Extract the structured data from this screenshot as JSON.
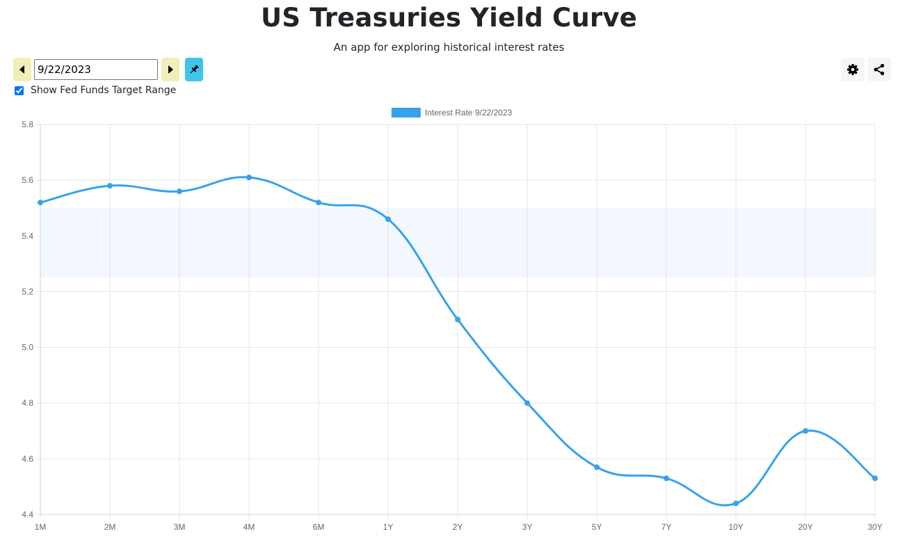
{
  "header": {
    "title": "US Treasuries Yield Curve",
    "subtitle": "An app for exploring historical interest rates"
  },
  "controls": {
    "prev_icon": "caret-left-icon",
    "next_icon": "caret-right-icon",
    "date_value": "9/22/2023",
    "pin_icon": "pin-icon",
    "settings_icon": "gear-icon",
    "share_icon": "share-icon",
    "fed_funds_label": "Show Fed Funds Target Range",
    "fed_funds_checked": true
  },
  "colors": {
    "nav_button_bg": "#efefb8",
    "pin_button_bg": "#3fc5ea",
    "series_line": "#36a2eb",
    "fed_band": "#f2f8fd"
  },
  "chart_data": {
    "type": "line",
    "categories": [
      "1M",
      "2M",
      "3M",
      "4M",
      "6M",
      "1Y",
      "2Y",
      "3Y",
      "5Y",
      "7Y",
      "10Y",
      "20Y",
      "30Y"
    ],
    "series": [
      {
        "name": "Interest Rate 9/22/2023",
        "values": [
          5.52,
          5.58,
          5.56,
          5.61,
          5.52,
          5.46,
          5.1,
          4.8,
          4.57,
          4.53,
          4.44,
          4.7,
          4.53
        ]
      }
    ],
    "fed_funds_range": [
      5.25,
      5.5
    ],
    "ylim": [
      4.4,
      5.8
    ],
    "yticks": [
      "5.8",
      "5.6",
      "5.4",
      "5.2",
      "5.0",
      "4.8",
      "4.6",
      "4.4"
    ],
    "grid": true,
    "legend_position": "top-center"
  }
}
